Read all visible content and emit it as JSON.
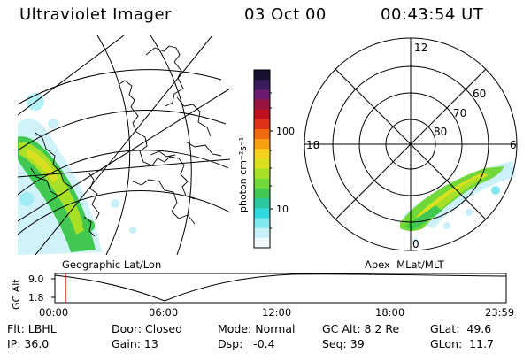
{
  "header": {
    "title": "Ultraviolet Imager",
    "date": "03 Oct 00",
    "time": "00:43:54 UT"
  },
  "colorbar": {
    "unit_label": "photon cm⁻²s⁻¹",
    "tick_100": "100",
    "tick_10": "10",
    "colors": [
      "#1a1030",
      "#3a1d5e",
      "#6a1a70",
      "#9a1240",
      "#c01020",
      "#e03018",
      "#f06a10",
      "#f8a010",
      "#f8d020",
      "#d8e020",
      "#a8e028",
      "#70d838",
      "#40c850",
      "#28c8a0",
      "#30d8e0",
      "#80e8f0",
      "#c8f0f8",
      "#f0f8fb"
    ]
  },
  "geo_panel": {
    "caption": "Geographic Lat/Lon"
  },
  "apex_panel": {
    "caption": "Apex  MLat/MLT",
    "lat_labels": [
      "80",
      "70",
      "60"
    ],
    "mlt_labels": [
      "12",
      "18",
      "6",
      "0"
    ]
  },
  "timeline": {
    "y_label": "GC Alt",
    "y_ticks": [
      "9.0",
      "1.8"
    ],
    "x_ticks": [
      "00:00",
      "06:00",
      "12:00",
      "18:00",
      "23:59"
    ],
    "marker_color": "#e02020"
  },
  "info": {
    "flt": "Flt: LBHL",
    "door": "Door: Closed",
    "mode": "Mode: Normal",
    "gc_alt": "GC Alt: 8.2 Re",
    "glat": "GLat:  49.6",
    "ip": "IP: 36.0",
    "gain": "Gain: 13",
    "dsp": "Dsp:   -0.4",
    "seq": "Seq: 39",
    "glon": "GLon:  11.7"
  }
}
